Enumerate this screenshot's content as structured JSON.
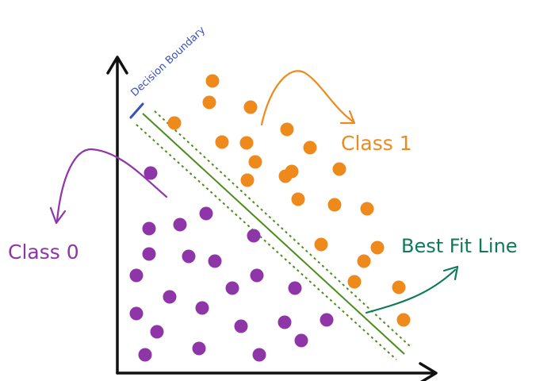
{
  "labels": {
    "decision_boundary": "Decision Boundary",
    "class_1": "Class 1",
    "class_0": "Class 0",
    "best_fit_line": "Best Fit Line"
  },
  "colors": {
    "class_0": "#8e35a8",
    "class_1": "#ee8a1c",
    "line": "#4c8c1c",
    "best_fit_label": "#0f7a5a",
    "decision_boundary_label": "#3a4fbf",
    "axes": "#111111"
  },
  "class_1_points": [
    [
      268,
      102
    ],
    [
      264,
      129
    ],
    [
      316,
      135
    ],
    [
      220,
      155
    ],
    [
      362,
      163
    ],
    [
      280,
      179
    ],
    [
      311,
      180
    ],
    [
      391,
      186
    ],
    [
      322,
      204
    ],
    [
      428,
      213
    ],
    [
      368,
      216
    ],
    [
      360,
      222
    ],
    [
      312,
      227
    ],
    [
      376,
      251
    ],
    [
      422,
      258
    ],
    [
      463,
      263
    ],
    [
      405,
      308
    ],
    [
      476,
      312
    ],
    [
      459,
      329
    ],
    [
      447,
      355
    ],
    [
      503,
      362
    ],
    [
      509,
      403
    ]
  ],
  "class_0_points": [
    [
      190,
      218
    ],
    [
      260,
      269
    ],
    [
      227,
      283
    ],
    [
      188,
      288
    ],
    [
      320,
      297
    ],
    [
      188,
      320
    ],
    [
      238,
      323
    ],
    [
      271,
      329
    ],
    [
      172,
      347
    ],
    [
      324,
      347
    ],
    [
      293,
      363
    ],
    [
      372,
      363
    ],
    [
      214,
      374
    ],
    [
      255,
      388
    ],
    [
      172,
      395
    ],
    [
      412,
      403
    ],
    [
      359,
      406
    ],
    [
      304,
      411
    ],
    [
      198,
      418
    ],
    [
      380,
      429
    ],
    [
      251,
      439
    ],
    [
      183,
      447
    ],
    [
      327,
      447
    ]
  ]
}
